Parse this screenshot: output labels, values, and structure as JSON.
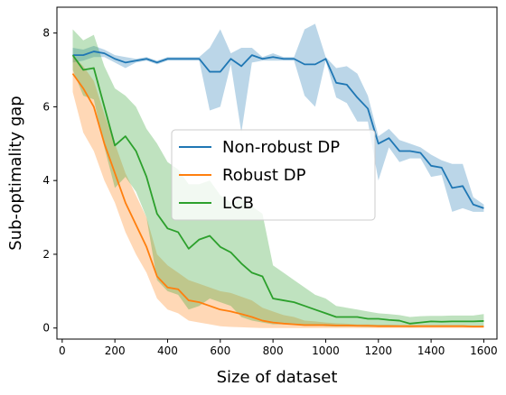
{
  "chart_data": {
    "type": "line",
    "xlabel": "Size of dataset",
    "ylabel": "Sub-optimality gap",
    "xlim": [
      -20,
      1650
    ],
    "ylim": [
      -0.3,
      8.7
    ],
    "xticks": [
      0,
      200,
      400,
      600,
      800,
      1000,
      1200,
      1400,
      1600
    ],
    "yticks": [
      0,
      2,
      4,
      6,
      8
    ],
    "grid": false,
    "legend_position": "center",
    "x": [
      40,
      80,
      120,
      160,
      200,
      240,
      280,
      320,
      360,
      400,
      440,
      480,
      520,
      560,
      600,
      640,
      680,
      720,
      760,
      800,
      840,
      880,
      920,
      960,
      1000,
      1040,
      1080,
      1120,
      1160,
      1200,
      1240,
      1280,
      1320,
      1360,
      1400,
      1440,
      1480,
      1520,
      1560,
      1600
    ],
    "series": [
      {
        "name": "Non-robust DP",
        "color": "#1f77b4",
        "values": [
          7.4,
          7.4,
          7.5,
          7.45,
          7.3,
          7.2,
          7.25,
          7.3,
          7.2,
          7.3,
          7.3,
          7.3,
          7.3,
          6.95,
          6.95,
          7.3,
          7.1,
          7.4,
          7.3,
          7.35,
          7.3,
          7.3,
          7.15,
          7.15,
          7.3,
          6.65,
          6.6,
          6.25,
          5.95,
          5.0,
          5.15,
          4.8,
          4.8,
          4.75,
          4.4,
          4.35,
          3.8,
          3.85,
          3.35,
          3.25
        ],
        "upper": [
          7.6,
          7.55,
          7.65,
          7.55,
          7.4,
          7.35,
          7.3,
          7.35,
          7.25,
          7.35,
          7.35,
          7.35,
          7.35,
          7.6,
          8.1,
          7.45,
          7.6,
          7.6,
          7.35,
          7.45,
          7.35,
          7.35,
          8.1,
          8.25,
          7.35,
          7.05,
          7.1,
          6.9,
          6.3,
          5.2,
          5.4,
          5.1,
          5.0,
          4.9,
          4.7,
          4.55,
          4.45,
          4.45,
          3.55,
          3.35
        ],
        "lower": [
          7.2,
          7.25,
          7.35,
          7.35,
          7.2,
          7.05,
          7.2,
          7.25,
          7.15,
          7.25,
          7.25,
          7.25,
          7.25,
          5.9,
          6.0,
          7.15,
          5.3,
          7.2,
          7.25,
          7.25,
          7.25,
          7.25,
          6.3,
          6.0,
          7.25,
          6.25,
          6.1,
          5.6,
          5.6,
          4.0,
          4.9,
          4.5,
          4.6,
          4.6,
          4.1,
          4.15,
          3.15,
          3.25,
          3.15,
          3.15
        ]
      },
      {
        "name": "Robust DP",
        "color": "#ff7f0e",
        "values": [
          6.9,
          6.5,
          6.0,
          5.0,
          4.2,
          3.4,
          2.8,
          2.2,
          1.4,
          1.1,
          1.05,
          0.75,
          0.7,
          0.6,
          0.5,
          0.45,
          0.38,
          0.3,
          0.2,
          0.15,
          0.12,
          0.1,
          0.08,
          0.08,
          0.08,
          0.07,
          0.07,
          0.06,
          0.06,
          0.05,
          0.05,
          0.05,
          0.05,
          0.05,
          0.05,
          0.05,
          0.05,
          0.05,
          0.04,
          0.04
        ],
        "upper": [
          7.4,
          7.1,
          6.7,
          5.8,
          5.0,
          4.2,
          3.6,
          3.0,
          2.0,
          1.7,
          1.5,
          1.3,
          1.2,
          1.1,
          1.0,
          0.95,
          0.85,
          0.75,
          0.55,
          0.45,
          0.35,
          0.3,
          0.2,
          0.18,
          0.15,
          0.13,
          0.12,
          0.1,
          0.1,
          0.09,
          0.09,
          0.08,
          0.08,
          0.08,
          0.08,
          0.08,
          0.08,
          0.08,
          0.07,
          0.07
        ],
        "lower": [
          6.4,
          5.3,
          4.8,
          4.0,
          3.4,
          2.6,
          2.0,
          1.5,
          0.8,
          0.5,
          0.4,
          0.2,
          0.15,
          0.1,
          0.05,
          0.03,
          0.02,
          0.01,
          0.0,
          0.0,
          0.0,
          0.0,
          0.0,
          0.0,
          0.0,
          0.0,
          0.0,
          0.0,
          0.0,
          0.0,
          0.0,
          0.0,
          0.0,
          0.0,
          0.0,
          0.0,
          0.0,
          0.0,
          0.0,
          0.0
        ]
      },
      {
        "name": "LCB",
        "color": "#2ca02c",
        "values": [
          7.4,
          7.0,
          7.05,
          6.0,
          4.95,
          5.2,
          4.8,
          4.1,
          3.1,
          2.7,
          2.6,
          2.15,
          2.4,
          2.5,
          2.2,
          2.05,
          1.75,
          1.5,
          1.4,
          0.8,
          0.75,
          0.7,
          0.6,
          0.5,
          0.4,
          0.3,
          0.3,
          0.3,
          0.25,
          0.25,
          0.22,
          0.2,
          0.12,
          0.15,
          0.18,
          0.17,
          0.18,
          0.18,
          0.18,
          0.19
        ],
        "upper": [
          8.1,
          7.8,
          7.95,
          7.1,
          6.5,
          6.3,
          6.0,
          5.4,
          5.0,
          4.5,
          4.3,
          3.9,
          3.9,
          4.0,
          3.6,
          3.4,
          3.5,
          3.3,
          3.1,
          1.7,
          1.5,
          1.3,
          1.1,
          0.9,
          0.8,
          0.6,
          0.55,
          0.5,
          0.45,
          0.4,
          0.38,
          0.35,
          0.3,
          0.32,
          0.33,
          0.33,
          0.34,
          0.34,
          0.34,
          0.38
        ],
        "lower": [
          7.0,
          6.3,
          6.2,
          4.9,
          3.8,
          4.1,
          3.7,
          3.0,
          1.3,
          1.0,
          0.9,
          0.5,
          0.6,
          0.8,
          0.7,
          0.6,
          0.3,
          0.2,
          0.15,
          0.1,
          0.1,
          0.1,
          0.1,
          0.08,
          0.05,
          0.04,
          0.04,
          0.04,
          0.03,
          0.03,
          0.03,
          0.03,
          0.02,
          0.03,
          0.03,
          0.03,
          0.03,
          0.03,
          0.03,
          0.03
        ]
      }
    ]
  }
}
